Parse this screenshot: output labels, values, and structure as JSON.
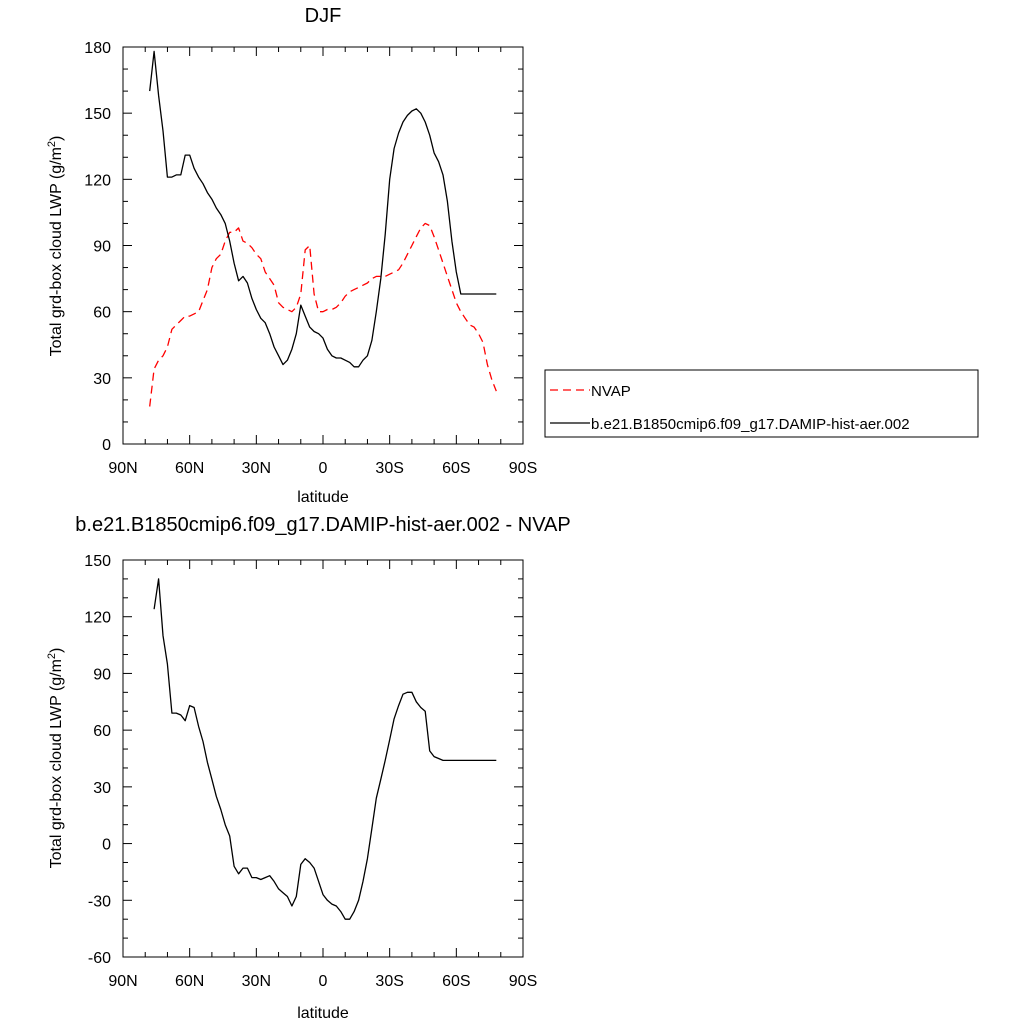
{
  "chart_data": [
    {
      "type": "line",
      "title": "DJF",
      "xlabel": "latitude",
      "ylabel": "Total grd-box cloud LWP (g/m²)",
      "ylabel_main": "Total grd-box cloud LWP (g/m",
      "ylabel_sup": "2",
      "ylabel_end": ")",
      "xlim": [
        -90,
        90
      ],
      "ylim": [
        0,
        180
      ],
      "x_ticks": [
        -90,
        -60,
        -30,
        0,
        30,
        60,
        90
      ],
      "x_tick_labels": [
        "90N",
        "60N",
        "30N",
        "0",
        "30S",
        "60S",
        "90S"
      ],
      "y_ticks": [
        0,
        30,
        60,
        90,
        120,
        150,
        180
      ],
      "y_tick_labels": [
        "0",
        "30",
        "60",
        "90",
        "120",
        "150",
        "180"
      ],
      "legend_position": "right",
      "series": [
        {
          "name": "NVAP",
          "color": "#ff0000",
          "style": "dashed",
          "x": [
            -78,
            -76,
            -74,
            -72,
            -70,
            -68,
            -66,
            -64,
            -62,
            -60,
            -58,
            -56,
            -54,
            -52,
            -50,
            -48,
            -46,
            -44,
            -42,
            -40,
            -38,
            -36,
            -34,
            -32,
            -30,
            -28,
            -26,
            -24,
            -22,
            -20,
            -18,
            -16,
            -14,
            -12,
            -10,
            -8,
            -6,
            -4,
            -2,
            0,
            2,
            4,
            6,
            8,
            10,
            12,
            14,
            16,
            18,
            20,
            22,
            24,
            26,
            28,
            30,
            32,
            34,
            36,
            38,
            40,
            42,
            44,
            46,
            48,
            50,
            52,
            54,
            56,
            58,
            60,
            62,
            64,
            66,
            68,
            70,
            72,
            74,
            76,
            78
          ],
          "y": [
            17,
            34,
            38,
            40,
            44,
            52,
            54,
            56,
            58,
            58,
            59,
            60,
            65,
            70,
            80,
            84,
            86,
            92,
            96,
            96,
            98,
            92,
            91,
            89,
            86,
            84,
            78,
            75,
            72,
            64,
            62,
            61,
            60,
            62,
            68,
            88,
            90,
            68,
            60,
            60,
            61,
            61,
            62,
            64,
            67,
            69,
            70,
            71,
            72,
            73,
            75,
            76,
            76,
            76,
            77,
            78,
            79,
            82,
            86,
            90,
            94,
            98,
            100,
            99,
            94,
            88,
            82,
            76,
            70,
            64,
            60,
            57,
            54,
            53,
            50,
            46,
            36,
            29,
            24
          ]
        },
        {
          "name": "b.e21.B1850cmip6.f09_g17.DAMIP-hist-aer.002",
          "color": "#000000",
          "style": "solid",
          "x": [
            -78,
            -76,
            -74,
            -72,
            -70,
            -68,
            -66,
            -64,
            -62,
            -60,
            -58,
            -56,
            -54,
            -52,
            -50,
            -48,
            -46,
            -44,
            -42,
            -40,
            -38,
            -36,
            -34,
            -32,
            -30,
            -28,
            -26,
            -24,
            -22,
            -20,
            -18,
            -16,
            -14,
            -12,
            -10,
            -8,
            -6,
            -4,
            -2,
            0,
            2,
            4,
            6,
            8,
            10,
            12,
            14,
            16,
            18,
            20,
            22,
            24,
            26,
            28,
            30,
            32,
            34,
            36,
            38,
            40,
            42,
            44,
            46,
            48,
            50,
            52,
            54,
            56,
            58,
            60,
            62,
            64,
            66,
            68,
            70,
            72,
            74,
            76,
            78
          ],
          "y": [
            160,
            178,
            158,
            142,
            121,
            121,
            122,
            122,
            131,
            131,
            125,
            121,
            118,
            114,
            111,
            107,
            104,
            100,
            92,
            82,
            74,
            76,
            73,
            66,
            61,
            57,
            55,
            50,
            44,
            40,
            36,
            38,
            43,
            50,
            63,
            58,
            53,
            51,
            50,
            48,
            43,
            40,
            39,
            39,
            38,
            37,
            35,
            35,
            38,
            40,
            47,
            60,
            75,
            95,
            120,
            134,
            141,
            146,
            149,
            151,
            152,
            150,
            146,
            140,
            132,
            128,
            122,
            110,
            92,
            78,
            68,
            68,
            68,
            68,
            68,
            68,
            68,
            68,
            68
          ]
        }
      ]
    },
    {
      "type": "line",
      "title": "b.e21.B1850cmip6.f09_g17.DAMIP-hist-aer.002 - NVAP",
      "xlabel": "latitude",
      "ylabel": "Total grd-box cloud LWP (g/m²)",
      "ylabel_main": "Total grd-box cloud LWP (g/m",
      "ylabel_sup": "2",
      "ylabel_end": ")",
      "xlim": [
        -90,
        90
      ],
      "ylim": [
        -60,
        150
      ],
      "x_ticks": [
        -90,
        -60,
        -30,
        0,
        30,
        60,
        90
      ],
      "x_tick_labels": [
        "90N",
        "60N",
        "30N",
        "0",
        "30S",
        "60S",
        "90S"
      ],
      "y_ticks": [
        -60,
        -30,
        0,
        30,
        60,
        90,
        120,
        150
      ],
      "y_tick_labels": [
        "-60",
        "-30",
        "0",
        "30",
        "60",
        "90",
        "120",
        "150"
      ],
      "series": [
        {
          "color": "#000000",
          "style": "solid",
          "x": [
            -76,
            -74,
            -72,
            -70,
            -68,
            -66,
            -64,
            -62,
            -60,
            -58,
            -56,
            -54,
            -52,
            -50,
            -48,
            -46,
            -44,
            -42,
            -40,
            -38,
            -36,
            -34,
            -32,
            -30,
            -28,
            -26,
            -24,
            -22,
            -20,
            -18,
            -16,
            -14,
            -12,
            -10,
            -8,
            -6,
            -4,
            -2,
            0,
            2,
            4,
            6,
            8,
            10,
            12,
            14,
            16,
            18,
            20,
            22,
            24,
            26,
            28,
            30,
            32,
            34,
            36,
            38,
            40,
            42,
            44,
            46,
            48,
            50,
            52,
            54,
            56,
            58,
            60,
            62,
            64,
            66,
            68,
            70,
            72,
            74,
            76,
            78
          ],
          "y": [
            124,
            140,
            110,
            95,
            69,
            69,
            68,
            65,
            73,
            72,
            62,
            54,
            43,
            34,
            25,
            18,
            10,
            4,
            -12,
            -16,
            -13,
            -13,
            -18,
            -18,
            -19,
            -18,
            -17,
            -20,
            -24,
            -26,
            -28,
            -33,
            -28,
            -11,
            -8,
            -10,
            -13,
            -20,
            -27,
            -30,
            -32,
            -33,
            -36,
            -40,
            -40,
            -36,
            -30,
            -20,
            -8,
            8,
            24,
            34,
            44,
            55,
            66,
            73,
            79,
            80,
            80,
            75,
            72,
            70,
            49,
            46,
            45,
            44,
            44,
            44,
            44,
            44,
            44,
            44,
            44,
            44,
            44,
            44,
            44,
            44
          ]
        }
      ]
    }
  ]
}
